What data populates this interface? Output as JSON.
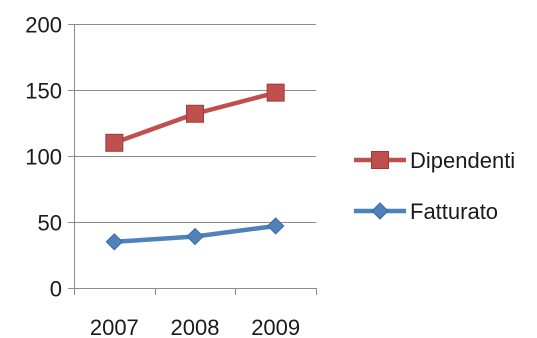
{
  "chart_data": {
    "type": "line",
    "title": "",
    "xlabel": "",
    "ylabel": "",
    "categories": [
      "2007",
      "2008",
      "2009"
    ],
    "ylim": [
      0,
      200
    ],
    "yticks": [
      0,
      50,
      100,
      150,
      200
    ],
    "grid": true,
    "legend_position": "right",
    "series": [
      {
        "name": "Dipendenti",
        "values": [
          110,
          132,
          148
        ],
        "color": "#c0504d",
        "marker": "square"
      },
      {
        "name": "Fatturato",
        "values": [
          35,
          39,
          47
        ],
        "color": "#4f81bd",
        "marker": "diamond"
      }
    ]
  }
}
